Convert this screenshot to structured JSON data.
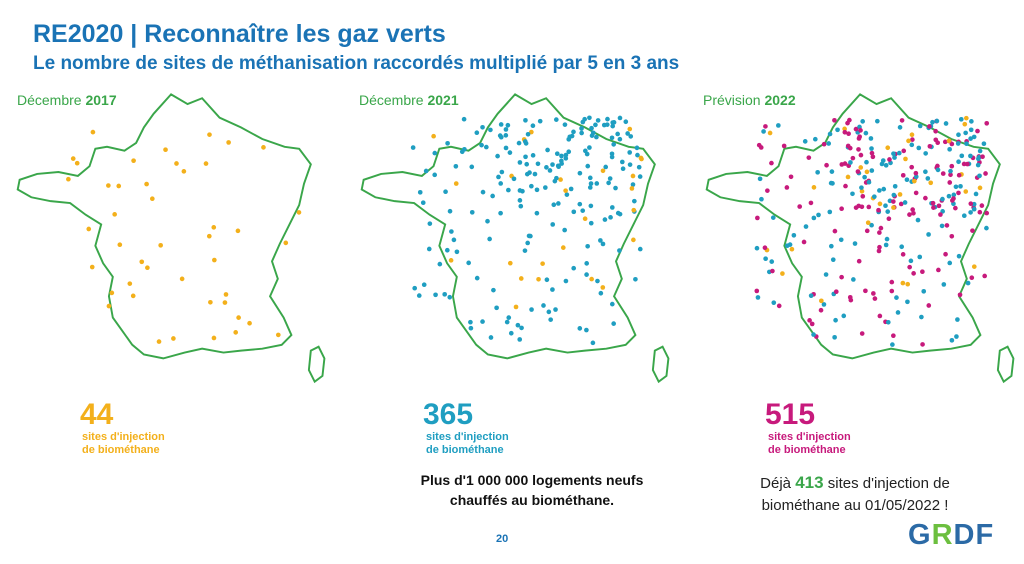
{
  "title": "RE2020 | Reconnaître les gaz verts",
  "subtitle": "Le nombre de sites de méthanisation raccordés multiplié par 5 en 3 ans",
  "colors": {
    "title": "#1a73b5",
    "map_outline": "#3aa64a",
    "yellow": "#f3b01b",
    "blue": "#1f9ec1",
    "pink": "#c71a7c",
    "green": "#3aa64a"
  },
  "panels": [
    {
      "label_prefix": "Décembre ",
      "label_year": "2017",
      "count": "44",
      "caption_line1": "sites d'injection",
      "caption_line2": "de biométhane",
      "count_color": "#f3b01b"
    },
    {
      "label_prefix": "Décembre ",
      "label_year": "2021",
      "count": "365",
      "caption_line1": "sites d'injection",
      "caption_line2": "de biométhane",
      "count_color": "#1f9ec1"
    },
    {
      "label_prefix": "Prévision ",
      "label_year": "2022",
      "count": "515",
      "caption_line1": "sites d'injection",
      "caption_line2": "de biométhane",
      "count_color": "#c71a7c"
    }
  ],
  "note_housing": {
    "line1": "Plus d'1 000 000 logements neufs",
    "line2": "chauffés au biométhane."
  },
  "note_sites": {
    "before": "Déjà ",
    "number": "413",
    "after_line1": " sites d'injection de",
    "line2": "biométhane au 01/05/2022 !"
  },
  "page_number": "20",
  "logo": {
    "g": "G",
    "r": "R",
    "d": "D",
    "f": "F"
  }
}
